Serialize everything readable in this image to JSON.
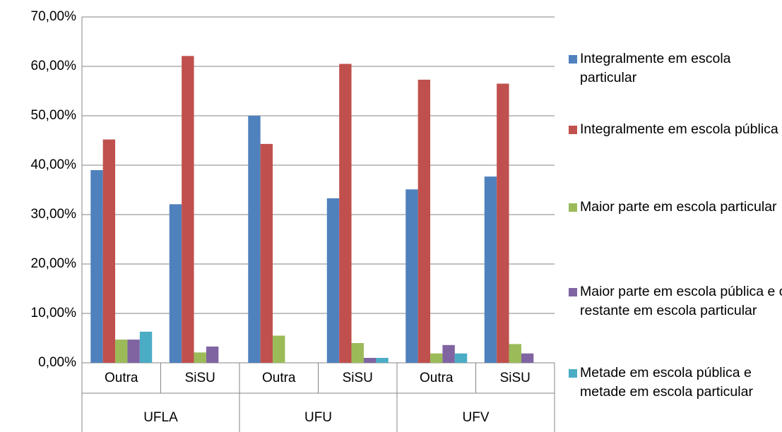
{
  "chart_data": {
    "type": "bar",
    "categories": [
      "Outra",
      "SiSU",
      "Outra",
      "SiSU",
      "Outra",
      "SiSU"
    ],
    "groups": [
      "UFLA",
      "UFU",
      "UFV"
    ],
    "series": [
      {
        "name": "Integralmente em escola particular",
        "color": "#4f81bd",
        "values": [
          39.0,
          32.1,
          50.0,
          33.3,
          35.1,
          37.7
        ]
      },
      {
        "name": "Integralmente em escola pública",
        "color": "#c0504d",
        "values": [
          45.2,
          62.1,
          44.3,
          60.5,
          57.3,
          56.5
        ]
      },
      {
        "name": "Maior parte em escola particular",
        "color": "#9bbb59",
        "values": [
          4.7,
          2.1,
          5.5,
          4.0,
          1.9,
          3.8
        ]
      },
      {
        "name": "Maior parte em escola pública e o restante em escola particular",
        "color": "#8064a2",
        "values": [
          4.7,
          3.3,
          0,
          1.0,
          3.6,
          1.9
        ]
      },
      {
        "name": "Metade em escola pública e metade em escola particular",
        "color": "#4bacc6",
        "values": [
          6.3,
          0,
          0,
          1.0,
          1.9,
          0
        ]
      }
    ],
    "ylim": [
      0,
      70
    ],
    "yticks": [
      {
        "value": 0,
        "label": "0,00%"
      },
      {
        "value": 10,
        "label": "10,00%"
      },
      {
        "value": 20,
        "label": "20,00%"
      },
      {
        "value": 30,
        "label": "30,00%"
      },
      {
        "value": 40,
        "label": "40,00%"
      },
      {
        "value": 50,
        "label": "50,00%"
      },
      {
        "value": 60,
        "label": "60,00%"
      },
      {
        "value": 70,
        "label": "70,00%"
      }
    ],
    "grid": true
  }
}
